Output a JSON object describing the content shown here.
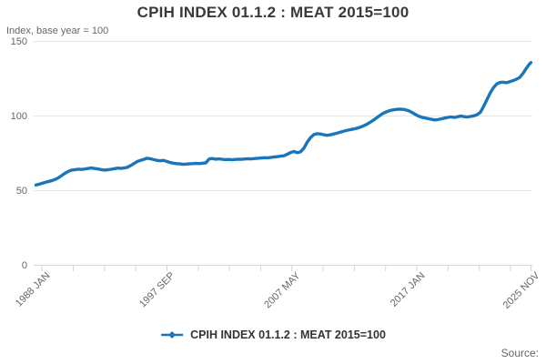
{
  "title": "CPIH INDEX 01.1.2 : MEAT 2015=100",
  "subtitle": "Index, base year = 100",
  "legend": {
    "label": "CPIH INDEX 01.1.2 : MEAT 2015=100",
    "marker": "line-with-diamond-marker"
  },
  "source_label": "Source:",
  "colors": {
    "line": "#1976bb",
    "grid": "#e6e6e6",
    "axis": "#ccd6eb",
    "muted_text": "#666666",
    "title_text": "#3a3a3a",
    "legend_text": "#333333"
  },
  "chart_data": {
    "type": "line",
    "title": "CPIH INDEX 01.1.2 : MEAT 2015=100",
    "subtitle": "Index, base year = 100",
    "ylabel": "Index, base year = 100",
    "xlabel": "",
    "ylim": [
      0,
      150
    ],
    "y_ticks": [
      0,
      50,
      100,
      150
    ],
    "xlim": [
      1988.0,
      2025.87
    ],
    "x_tick_labels": [
      "1988 JAN",
      "1997 SEP",
      "2007 MAY",
      "2017 JAN",
      "2025 NOV"
    ],
    "minor_ticks_between_major": 3,
    "grid": "horizontal",
    "legend_position": "bottom",
    "series": [
      {
        "name": "CPIH INDEX 01.1.2 : MEAT 2015=100",
        "points": [
          [
            1988.0,
            53.8
          ],
          [
            1988.25,
            54.3
          ],
          [
            1988.5,
            55.0
          ],
          [
            1988.75,
            55.7
          ],
          [
            1989.0,
            56.2
          ],
          [
            1989.25,
            56.8
          ],
          [
            1989.5,
            57.6
          ],
          [
            1989.75,
            58.8
          ],
          [
            1990.0,
            60.3
          ],
          [
            1990.25,
            61.8
          ],
          [
            1990.5,
            63.0
          ],
          [
            1990.75,
            63.8
          ],
          [
            1991.0,
            64.1
          ],
          [
            1991.25,
            64.4
          ],
          [
            1991.5,
            64.2
          ],
          [
            1991.75,
            64.5
          ],
          [
            1992.0,
            64.9
          ],
          [
            1992.25,
            65.2
          ],
          [
            1992.5,
            64.8
          ],
          [
            1992.75,
            64.5
          ],
          [
            1993.0,
            64.1
          ],
          [
            1993.25,
            63.8
          ],
          [
            1993.5,
            64.0
          ],
          [
            1993.75,
            64.3
          ],
          [
            1994.0,
            64.7
          ],
          [
            1994.25,
            65.1
          ],
          [
            1994.5,
            64.9
          ],
          [
            1994.75,
            65.2
          ],
          [
            1995.0,
            65.7
          ],
          [
            1995.25,
            66.8
          ],
          [
            1995.5,
            68.2
          ],
          [
            1995.75,
            69.5
          ],
          [
            1996.0,
            70.3
          ],
          [
            1996.25,
            71.0
          ],
          [
            1996.5,
            71.7
          ],
          [
            1996.75,
            71.4
          ],
          [
            1997.0,
            70.8
          ],
          [
            1997.25,
            70.3
          ],
          [
            1997.5,
            70.0
          ],
          [
            1997.75,
            70.3
          ],
          [
            1998.0,
            69.6
          ],
          [
            1998.25,
            68.9
          ],
          [
            1998.5,
            68.4
          ],
          [
            1998.75,
            68.1
          ],
          [
            1999.0,
            67.9
          ],
          [
            1999.25,
            67.7
          ],
          [
            1999.5,
            67.8
          ],
          [
            1999.75,
            68.0
          ],
          [
            2000.0,
            68.1
          ],
          [
            2000.25,
            68.3
          ],
          [
            2000.5,
            68.1
          ],
          [
            2000.75,
            68.4
          ],
          [
            2001.0,
            68.6
          ],
          [
            2001.25,
            71.2
          ],
          [
            2001.5,
            71.5
          ],
          [
            2001.75,
            71.1
          ],
          [
            2002.0,
            71.3
          ],
          [
            2002.25,
            71.0
          ],
          [
            2002.5,
            70.8
          ],
          [
            2002.75,
            70.9
          ],
          [
            2003.0,
            70.7
          ],
          [
            2003.25,
            70.9
          ],
          [
            2003.5,
            71.1
          ],
          [
            2003.75,
            71.0
          ],
          [
            2004.0,
            71.2
          ],
          [
            2004.25,
            71.4
          ],
          [
            2004.5,
            71.3
          ],
          [
            2004.75,
            71.5
          ],
          [
            2005.0,
            71.7
          ],
          [
            2005.25,
            71.9
          ],
          [
            2005.5,
            72.1
          ],
          [
            2005.75,
            72.0
          ],
          [
            2006.0,
            72.3
          ],
          [
            2006.25,
            72.6
          ],
          [
            2006.5,
            72.8
          ],
          [
            2006.75,
            73.1
          ],
          [
            2007.0,
            73.5
          ],
          [
            2007.25,
            74.5
          ],
          [
            2007.5,
            75.6
          ],
          [
            2007.75,
            76.2
          ],
          [
            2008.0,
            75.4
          ],
          [
            2008.25,
            76.1
          ],
          [
            2008.5,
            78.5
          ],
          [
            2008.75,
            82.5
          ],
          [
            2009.0,
            85.5
          ],
          [
            2009.25,
            87.5
          ],
          [
            2009.5,
            88.2
          ],
          [
            2009.75,
            88.0
          ],
          [
            2010.0,
            87.5
          ],
          [
            2010.25,
            87.1
          ],
          [
            2010.5,
            87.4
          ],
          [
            2010.75,
            87.9
          ],
          [
            2011.0,
            88.4
          ],
          [
            2011.25,
            89.1
          ],
          [
            2011.5,
            89.7
          ],
          [
            2011.75,
            90.3
          ],
          [
            2012.0,
            90.8
          ],
          [
            2012.25,
            91.2
          ],
          [
            2012.5,
            91.7
          ],
          [
            2012.75,
            92.3
          ],
          [
            2013.0,
            93.2
          ],
          [
            2013.25,
            94.2
          ],
          [
            2013.5,
            95.4
          ],
          [
            2013.75,
            96.8
          ],
          [
            2014.0,
            98.4
          ],
          [
            2014.25,
            100.0
          ],
          [
            2014.5,
            101.5
          ],
          [
            2014.75,
            102.6
          ],
          [
            2015.0,
            103.4
          ],
          [
            2015.25,
            104.0
          ],
          [
            2015.5,
            104.4
          ],
          [
            2015.75,
            104.6
          ],
          [
            2016.0,
            104.5
          ],
          [
            2016.25,
            104.2
          ],
          [
            2016.5,
            103.6
          ],
          [
            2016.75,
            102.5
          ],
          [
            2017.0,
            101.2
          ],
          [
            2017.25,
            100.0
          ],
          [
            2017.5,
            99.2
          ],
          [
            2017.75,
            98.7
          ],
          [
            2018.0,
            98.3
          ],
          [
            2018.25,
            97.8
          ],
          [
            2018.5,
            97.4
          ],
          [
            2018.75,
            97.6
          ],
          [
            2019.0,
            98.1
          ],
          [
            2019.25,
            98.6
          ],
          [
            2019.5,
            99.1
          ],
          [
            2019.75,
            99.4
          ],
          [
            2020.0,
            99.0
          ],
          [
            2020.25,
            99.5
          ],
          [
            2020.5,
            100.0
          ],
          [
            2020.75,
            99.6
          ],
          [
            2021.0,
            99.3
          ],
          [
            2021.25,
            99.7
          ],
          [
            2021.5,
            100.2
          ],
          [
            2021.75,
            100.9
          ],
          [
            2022.0,
            102.5
          ],
          [
            2022.25,
            106.5
          ],
          [
            2022.5,
            111.0
          ],
          [
            2022.75,
            115.5
          ],
          [
            2023.0,
            119.0
          ],
          [
            2023.25,
            121.5
          ],
          [
            2023.5,
            122.5
          ],
          [
            2023.75,
            122.7
          ],
          [
            2024.0,
            122.3
          ],
          [
            2024.25,
            123.0
          ],
          [
            2024.5,
            123.7
          ],
          [
            2024.75,
            124.6
          ],
          [
            2025.0,
            125.8
          ],
          [
            2025.25,
            128.5
          ],
          [
            2025.5,
            131.8
          ],
          [
            2025.75,
            134.8
          ],
          [
            2025.87,
            135.8
          ]
        ]
      }
    ]
  }
}
